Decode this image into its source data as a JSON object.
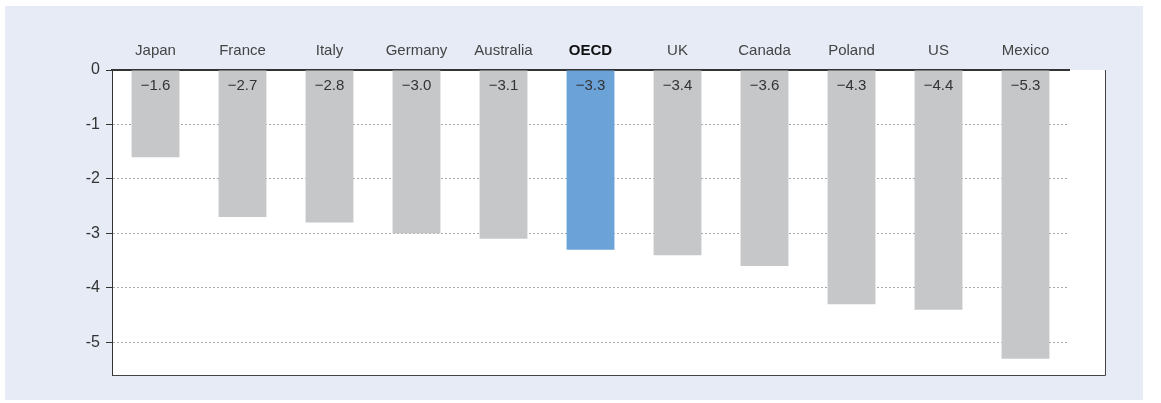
{
  "chart_data": {
    "type": "bar",
    "categories": [
      "Japan",
      "France",
      "Italy",
      "Germany",
      "Australia",
      "OECD",
      "UK",
      "Canada",
      "Poland",
      "US",
      "Mexico"
    ],
    "values": [
      -1.6,
      -2.7,
      -2.8,
      -3.0,
      -3.1,
      -3.3,
      -3.4,
      -3.6,
      -4.3,
      -4.4,
      -5.3
    ],
    "colors": [
      "#c6c7c9",
      "#c6c7c9",
      "#c6c7c9",
      "#c6c7c9",
      "#c6c7c9",
      "#6ba3d8",
      "#c6c7c9",
      "#c6c7c9",
      "#c6c7c9",
      "#c6c7c9",
      "#c6c7c9"
    ],
    "value_labels": [
      "−1.6",
      "−2.7",
      "−2.8",
      "−3.0",
      "−3.1",
      "−3.3",
      "−3.4",
      "−3.6",
      "−4.3",
      "−4.4",
      "−5.3"
    ],
    "ylim": [
      -5.6,
      0
    ],
    "yticks": [
      0,
      -1,
      -2,
      -3,
      -4,
      -5
    ],
    "grid": "y"
  }
}
